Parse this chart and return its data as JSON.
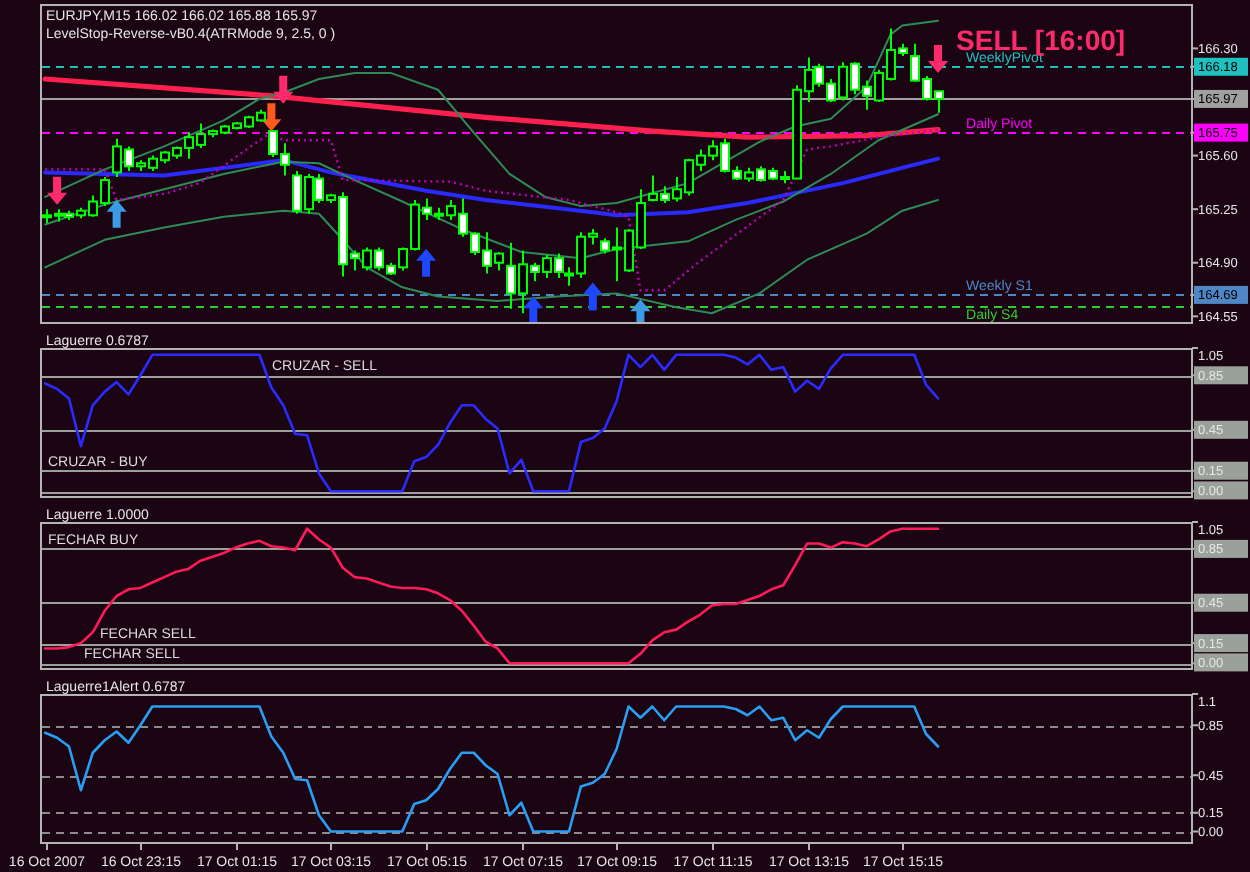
{
  "chart_data": [
    {
      "type": "candlestick",
      "title": "EURJPY,M15 166.02 166.02 165.88 165.97",
      "subtitle": "LevelStop-Reverse-vB0.4(ATRMode 9, 2.5, 0 )",
      "color": "#00ff00",
      "x": [
        "2007-10-16T21:15",
        "2007-10-16T21:30",
        "2007-10-16T21:45",
        "2007-10-16T22:00",
        "2007-10-16T22:15",
        "2007-10-16T22:30",
        "2007-10-16T22:45",
        "2007-10-16T23:00",
        "2007-10-16T23:15",
        "2007-10-16T23:30",
        "2007-10-16T23:45",
        "2007-10-17T00:00",
        "2007-10-17T00:15",
        "2007-10-17T00:30",
        "2007-10-17T00:45",
        "2007-10-17T01:00",
        "2007-10-17T01:15",
        "2007-10-17T01:30",
        "2007-10-17T01:45",
        "2007-10-17T02:00",
        "2007-10-17T02:15",
        "2007-10-17T02:30",
        "2007-10-17T02:45",
        "2007-10-17T03:00",
        "2007-10-17T03:15",
        "2007-10-17T03:30",
        "2007-10-17T03:45",
        "2007-10-17T04:00",
        "2007-10-17T04:15",
        "2007-10-17T04:30",
        "2007-10-17T04:45",
        "2007-10-17T05:00",
        "2007-10-17T05:15",
        "2007-10-17T05:30",
        "2007-10-17T05:45",
        "2007-10-17T06:00",
        "2007-10-17T06:15",
        "2007-10-17T06:30",
        "2007-10-17T06:45",
        "2007-10-17T07:00",
        "2007-10-17T07:15",
        "2007-10-17T07:30",
        "2007-10-17T07:45",
        "2007-10-17T08:00",
        "2007-10-17T08:15",
        "2007-10-17T08:30",
        "2007-10-17T08:45",
        "2007-10-17T09:00",
        "2007-10-17T09:15",
        "2007-10-17T09:30",
        "2007-10-17T09:45",
        "2007-10-17T10:00",
        "2007-10-17T10:15",
        "2007-10-17T10:30",
        "2007-10-17T10:45",
        "2007-10-17T11:00",
        "2007-10-17T11:15",
        "2007-10-17T11:30",
        "2007-10-17T11:45",
        "2007-10-17T12:00",
        "2007-10-17T12:15",
        "2007-10-17T12:30",
        "2007-10-17T12:45",
        "2007-10-17T13:00",
        "2007-10-17T13:15",
        "2007-10-17T13:30",
        "2007-10-17T13:45",
        "2007-10-17T14:00",
        "2007-10-17T14:15",
        "2007-10-17T14:30",
        "2007-10-17T14:45",
        "2007-10-17T15:00",
        "2007-10-17T15:15",
        "2007-10-17T15:30",
        "2007-10-17T15:45",
        "2007-10-17T16:00"
      ],
      "ohlc": [
        [
          165.2,
          165.25,
          165.16,
          165.21
        ],
        [
          165.22,
          165.25,
          165.17,
          165.21
        ],
        [
          165.22,
          165.24,
          165.18,
          165.2
        ],
        [
          165.21,
          165.26,
          165.19,
          165.24
        ],
        [
          165.21,
          165.34,
          165.2,
          165.3
        ],
        [
          165.29,
          165.46,
          165.27,
          165.44
        ],
        [
          165.49,
          165.71,
          165.46,
          165.66
        ],
        [
          165.64,
          165.66,
          165.5,
          165.53
        ],
        [
          165.53,
          165.57,
          165.5,
          165.55
        ],
        [
          165.52,
          165.6,
          165.5,
          165.58
        ],
        [
          165.57,
          165.63,
          165.55,
          165.62
        ],
        [
          165.6,
          165.66,
          165.58,
          165.65
        ],
        [
          165.65,
          165.75,
          165.58,
          165.72
        ],
        [
          165.67,
          165.81,
          165.65,
          165.74
        ],
        [
          165.74,
          165.77,
          165.72,
          165.76
        ],
        [
          165.75,
          165.8,
          165.74,
          165.79
        ],
        [
          165.78,
          165.82,
          165.77,
          165.81
        ],
        [
          165.79,
          165.86,
          165.78,
          165.85
        ],
        [
          165.83,
          165.9,
          165.82,
          165.88
        ],
        [
          165.76,
          165.76,
          165.59,
          165.61
        ],
        [
          165.61,
          165.68,
          165.47,
          165.54
        ],
        [
          165.47,
          165.5,
          165.22,
          165.24
        ],
        [
          165.25,
          165.48,
          165.22,
          165.46
        ],
        [
          165.45,
          165.48,
          165.29,
          165.31
        ],
        [
          165.31,
          165.35,
          165.29,
          165.34
        ],
        [
          165.33,
          165.36,
          164.81,
          164.89
        ],
        [
          164.96,
          164.98,
          164.85,
          164.93
        ],
        [
          164.87,
          165.0,
          164.85,
          164.98
        ],
        [
          164.98,
          165.0,
          164.85,
          164.87
        ],
        [
          164.88,
          164.9,
          164.82,
          164.83
        ],
        [
          164.87,
          165.0,
          164.85,
          164.99
        ],
        [
          164.99,
          165.31,
          164.98,
          165.28
        ],
        [
          165.26,
          165.32,
          165.18,
          165.22
        ],
        [
          165.22,
          165.26,
          165.18,
          165.21
        ],
        [
          165.21,
          165.31,
          165.18,
          165.27
        ],
        [
          165.22,
          165.32,
          165.07,
          165.09
        ],
        [
          165.09,
          165.1,
          164.95,
          164.97
        ],
        [
          164.98,
          165.1,
          164.83,
          164.88
        ],
        [
          164.9,
          164.97,
          164.85,
          164.96
        ],
        [
          164.88,
          165.03,
          164.6,
          164.7
        ],
        [
          164.7,
          164.98,
          164.57,
          164.89
        ],
        [
          164.88,
          164.9,
          164.78,
          164.84
        ],
        [
          164.84,
          164.95,
          164.8,
          164.93
        ],
        [
          164.93,
          164.96,
          164.8,
          164.84
        ],
        [
          164.82,
          164.87,
          164.75,
          164.83
        ],
        [
          164.83,
          165.1,
          164.8,
          165.07
        ],
        [
          165.07,
          165.12,
          165.02,
          165.09
        ],
        [
          165.04,
          165.06,
          164.96,
          164.98
        ],
        [
          164.99,
          165.13,
          164.78,
          165.0
        ],
        [
          164.85,
          165.12,
          164.84,
          165.11
        ],
        [
          165.0,
          165.38,
          164.99,
          165.29
        ],
        [
          165.31,
          165.47,
          165.3,
          165.35
        ],
        [
          165.35,
          165.4,
          165.29,
          165.31
        ],
        [
          165.32,
          165.46,
          165.3,
          165.38
        ],
        [
          165.36,
          165.58,
          165.34,
          165.57
        ],
        [
          165.54,
          165.64,
          165.5,
          165.6
        ],
        [
          165.6,
          165.7,
          165.57,
          165.66
        ],
        [
          165.68,
          165.71,
          165.49,
          165.5
        ],
        [
          165.5,
          165.53,
          165.44,
          165.45
        ],
        [
          165.45,
          165.52,
          165.43,
          165.49
        ],
        [
          165.51,
          165.53,
          165.43,
          165.44
        ],
        [
          165.5,
          165.52,
          165.44,
          165.45
        ],
        [
          165.45,
          165.5,
          165.42,
          165.46
        ],
        [
          165.45,
          166.06,
          165.45,
          166.03
        ],
        [
          166.02,
          166.24,
          165.95,
          166.16
        ],
        [
          166.18,
          166.2,
          166.05,
          166.07
        ],
        [
          166.07,
          166.1,
          165.95,
          165.96
        ],
        [
          165.98,
          166.21,
          165.96,
          166.18
        ],
        [
          166.2,
          166.21,
          166.0,
          166.03
        ],
        [
          166.05,
          166.09,
          165.9,
          165.99
        ],
        [
          165.96,
          166.16,
          165.95,
          166.14
        ],
        [
          166.1,
          166.43,
          166.09,
          166.29
        ],
        [
          166.3,
          166.33,
          166.25,
          166.27
        ],
        [
          166.25,
          166.33,
          166.08,
          166.09
        ],
        [
          166.1,
          166.12,
          165.96,
          165.97
        ],
        [
          166.02,
          166.02,
          165.88,
          165.97
        ]
      ],
      "series": [
        {
          "type": "line",
          "color": "#ff2050",
          "x": [
            "2007-10-16T21:15",
            "2007-10-17T02:00",
            "2007-10-17T06:30",
            "2007-10-17T10:00",
            "2007-10-17T12:00",
            "2007-10-17T14:30",
            "2007-10-17T16:00"
          ],
          "values": [
            166.1,
            165.99,
            165.85,
            165.76,
            165.72,
            165.73,
            165.77
          ]
        },
        {
          "type": "line",
          "color": "#2a2aff",
          "x": [
            "2007-10-16T21:15",
            "2007-10-16T23:45",
            "2007-10-17T02:15",
            "2007-10-17T03:15",
            "2007-10-17T05:15",
            "2007-10-17T06:30",
            "2007-10-17T08:45",
            "2007-10-17T09:15",
            "2007-10-17T10:45",
            "2007-10-17T12:00",
            "2007-10-17T14:00",
            "2007-10-17T16:00"
          ],
          "values": [
            165.49,
            165.47,
            165.57,
            165.49,
            165.37,
            165.31,
            165.23,
            165.21,
            165.23,
            165.29,
            165.42,
            165.58
          ]
        },
        {
          "type": "line",
          "color": "#2e8b57",
          "x": [
            "2007-10-16T21:15",
            "2007-10-16T22:30",
            "2007-10-16T23:45",
            "2007-10-17T01:00",
            "2007-10-17T01:45",
            "2007-10-17T02:15",
            "2007-10-17T03:00",
            "2007-10-17T03:45",
            "2007-10-17T04:30",
            "2007-10-17T05:30",
            "2007-10-17T06:15",
            "2007-10-17T07:00",
            "2007-10-17T07:45",
            "2007-10-17T08:30",
            "2007-10-17T09:15",
            "2007-10-17T10:45",
            "2007-10-17T12:15",
            "2007-10-17T13:00",
            "2007-10-17T13:45",
            "2007-10-17T14:30",
            "2007-10-17T15:00",
            "2007-10-17T15:15",
            "2007-10-17T16:00"
          ],
          "values": [
            165.33,
            165.51,
            165.66,
            165.83,
            165.97,
            166.01,
            166.1,
            166.14,
            166.14,
            166.03,
            165.75,
            165.48,
            165.33,
            165.27,
            165.29,
            165.42,
            165.69,
            165.79,
            165.84,
            166.05,
            166.39,
            166.45,
            166.48
          ]
        },
        {
          "type": "line",
          "color": "#2e8b57",
          "x": [
            "2007-10-16T21:15",
            "2007-10-16T22:30",
            "2007-10-16T23:45",
            "2007-10-17T01:00",
            "2007-10-17T02:15",
            "2007-10-17T03:00",
            "2007-10-17T03:45",
            "2007-10-17T04:45",
            "2007-10-17T06:00",
            "2007-10-17T07:15",
            "2007-10-17T08:30",
            "2007-10-17T09:15",
            "2007-10-17T10:45",
            "2007-10-17T11:45",
            "2007-10-17T12:45",
            "2007-10-17T13:45",
            "2007-10-17T14:45",
            "2007-10-17T16:00"
          ],
          "values": [
            165.15,
            165.28,
            165.38,
            165.48,
            165.56,
            165.55,
            165.44,
            165.3,
            165.12,
            164.97,
            164.93,
            164.99,
            165.04,
            165.18,
            165.3,
            165.48,
            165.7,
            165.87
          ]
        },
        {
          "type": "line",
          "color": "#2e8b57",
          "x": [
            "2007-10-16T21:15",
            "2007-10-16T22:30",
            "2007-10-16T23:45",
            "2007-10-17T01:00",
            "2007-10-17T02:15",
            "2007-10-17T03:00",
            "2007-10-17T03:30",
            "2007-10-17T04:00",
            "2007-10-17T04:45",
            "2007-10-17T05:30",
            "2007-10-17T06:45",
            "2007-10-17T08:00",
            "2007-10-17T09:15",
            "2007-10-17T10:30",
            "2007-10-17T11:15",
            "2007-10-17T12:15",
            "2007-10-17T13:15",
            "2007-10-17T14:30",
            "2007-10-17T15:15",
            "2007-10-17T16:00"
          ],
          "values": [
            164.87,
            165.05,
            165.13,
            165.2,
            165.24,
            165.22,
            165.05,
            164.87,
            164.74,
            164.68,
            164.65,
            164.68,
            164.7,
            164.61,
            164.57,
            164.7,
            164.92,
            165.09,
            165.24,
            165.31
          ]
        },
        {
          "type": "line",
          "color": "#c000c0",
          "line_style": "dotted",
          "x": [
            "2007-10-16T21:15",
            "2007-10-16T22:30",
            "2007-10-16T22:45",
            "2007-10-16T23:45",
            "2007-10-17T00:30",
            "2007-10-17T01:15",
            "2007-10-17T01:45",
            "2007-10-17T02:00",
            "2007-10-17T02:15",
            "2007-10-17T03:15",
            "2007-10-17T03:30",
            "2007-10-17T05:45",
            "2007-10-17T06:30",
            "2007-10-17T08:15",
            "2007-10-17T09:15",
            "2007-10-17T09:30",
            "2007-10-17T09:45",
            "2007-10-17T10:15",
            "2007-10-17T11:00",
            "2007-10-17T12:45",
            "2007-10-17T13:15",
            "2007-10-17T13:45",
            "2007-10-17T14:45",
            "2007-10-17T16:00"
          ],
          "values": [
            165.51,
            165.51,
            165.31,
            165.35,
            165.42,
            165.59,
            165.7,
            165.75,
            165.7,
            165.7,
            165.44,
            165.43,
            165.37,
            165.31,
            165.23,
            165.2,
            164.72,
            164.72,
            164.91,
            165.31,
            165.64,
            165.66,
            165.72,
            165.77
          ]
        },
        {
          "type": "scatter",
          "color": "#ff2a6d",
          "x": [
            "2007-10-16T21:30",
            "2007-10-17T02:15",
            "2007-10-17T16:00"
          ],
          "values": [
            165.37,
            166.03,
            166.23
          ]
        },
        {
          "type": "scatter",
          "color": "#ff5a1e",
          "x": [
            "2007-10-17T02:00"
          ],
          "values": [
            165.85
          ]
        },
        {
          "type": "scatter",
          "color": "#1e46ff",
          "x": [
            "2007-10-17T05:15",
            "2007-10-17T07:30",
            "2007-10-17T08:45"
          ],
          "values": [
            164.9,
            164.59,
            164.68
          ]
        },
        {
          "type": "scatter",
          "color": "#3c9be6",
          "x": [
            "2007-10-16T22:45",
            "2007-10-17T09:45"
          ],
          "values": [
            165.22,
            164.57
          ]
        }
      ],
      "xlim": [
        "2007-10-16T21:11",
        "2007-10-17T21:20"
      ],
      "ylim": [
        164.5,
        166.59
      ],
      "yticks": [
        {
          "value": 166.3,
          "label": "166.30"
        },
        166.18,
        165.97,
        165.75,
        {
          "value": 165.6,
          "label": "165.60"
        },
        165.25,
        {
          "value": 164.9,
          "label": "164.90"
        },
        164.69,
        164.55
      ],
      "tick_labels": "y",
      "ref_lines": [
        {
          "axis": "y",
          "value": 166.18,
          "label": "WeeklyPivot",
          "color": "#20c0c0",
          "line_style": "dashed"
        },
        {
          "axis": "y",
          "value": 165.97,
          "color": "#a0a0a0",
          "line_style": "solid"
        },
        {
          "axis": "y",
          "value": 165.75,
          "label": "Daily Pivot",
          "color": "#ff00ff",
          "line_style": "dashed"
        },
        {
          "axis": "y",
          "value": 164.69,
          "label": "Weekly S1",
          "color": "#4f86c6",
          "line_style": "dashed"
        },
        {
          "axis": "y",
          "value": 164.62,
          "label": "Daily S4",
          "color": "#32cd32",
          "line_style": "dashed"
        }
      ],
      "annotations": [
        "SELL [16:00]"
      ]
    },
    {
      "type": "line",
      "title": "Laguerre 0.6787",
      "x": [
        "2007-10-16T21:15",
        "2007-10-16T21:30",
        "2007-10-16T21:45",
        "2007-10-16T22:00",
        "2007-10-16T22:15",
        "2007-10-16T22:30",
        "2007-10-16T22:45",
        "2007-10-16T23:00",
        "2007-10-16T23:15",
        "2007-10-16T23:30",
        "2007-10-16T23:45",
        "2007-10-17T00:00",
        "2007-10-17T00:15",
        "2007-10-17T00:30",
        "2007-10-17T00:45",
        "2007-10-17T01:00",
        "2007-10-17T01:15",
        "2007-10-17T01:30",
        "2007-10-17T01:45",
        "2007-10-17T02:00",
        "2007-10-17T02:15",
        "2007-10-17T02:30",
        "2007-10-17T02:45",
        "2007-10-17T03:00",
        "2007-10-17T03:15",
        "2007-10-17T03:30",
        "2007-10-17T03:45",
        "2007-10-17T04:00",
        "2007-10-17T04:15",
        "2007-10-17T04:30",
        "2007-10-17T04:45",
        "2007-10-17T05:00",
        "2007-10-17T05:15",
        "2007-10-17T05:30",
        "2007-10-17T05:45",
        "2007-10-17T06:00",
        "2007-10-17T06:15",
        "2007-10-17T06:30",
        "2007-10-17T06:45",
        "2007-10-17T07:00",
        "2007-10-17T07:15",
        "2007-10-17T07:30",
        "2007-10-17T07:45",
        "2007-10-17T08:00",
        "2007-10-17T08:15",
        "2007-10-17T08:30",
        "2007-10-17T08:45",
        "2007-10-17T09:00",
        "2007-10-17T09:15",
        "2007-10-17T09:30",
        "2007-10-17T09:45",
        "2007-10-17T10:00",
        "2007-10-17T10:15",
        "2007-10-17T10:30",
        "2007-10-17T10:45",
        "2007-10-17T11:00",
        "2007-10-17T11:15",
        "2007-10-17T11:30",
        "2007-10-17T11:45",
        "2007-10-17T12:00",
        "2007-10-17T12:15",
        "2007-10-17T12:30",
        "2007-10-17T12:45",
        "2007-10-17T13:00",
        "2007-10-17T13:15",
        "2007-10-17T13:30",
        "2007-10-17T13:45",
        "2007-10-17T14:00",
        "2007-10-17T14:15",
        "2007-10-17T14:30",
        "2007-10-17T14:45",
        "2007-10-17T15:00",
        "2007-10-17T15:15",
        "2007-10-17T15:30",
        "2007-10-17T15:45",
        "2007-10-17T16:00"
      ],
      "series": [
        {
          "color": "#2b2bff",
          "values": [
            0.79,
            0.75,
            0.68,
            0.33,
            0.63,
            0.73,
            0.8,
            0.71,
            0.85,
            1,
            1,
            1,
            1,
            1,
            1,
            1,
            1,
            1,
            1,
            0.76,
            0.63,
            0.42,
            0.41,
            0.13,
            0,
            0,
            0,
            0,
            0,
            0,
            0,
            0.22,
            0.25,
            0.34,
            0.5,
            0.63,
            0.63,
            0.53,
            0.46,
            0.13,
            0.23,
            0,
            0,
            0,
            0,
            0.36,
            0.39,
            0.46,
            0.66,
            1,
            0.91,
            1,
            0.89,
            1,
            1,
            1,
            1,
            1,
            0.98,
            0.93,
            1,
            0.89,
            0.91,
            0.73,
            0.81,
            0.75,
            0.9,
            1,
            1,
            1,
            1,
            1,
            1,
            1,
            0.78,
            0.68
          ]
        }
      ],
      "xlim": [
        "2007-10-16T21:11",
        "2007-10-17T21:20"
      ],
      "ylim": [
        -0.05,
        1.05
      ],
      "yticks": [
        1.05,
        0.85,
        0.45,
        0.15,
        {
          "value": 0,
          "label": "0.00"
        }
      ],
      "tick_labels": "y",
      "ref_lines": [
        {
          "axis": "y",
          "value": 0.85,
          "label": "CRUZAR - SELL",
          "color": "#9aa09a"
        },
        {
          "axis": "y",
          "value": 0.45,
          "color": "#9aa09a"
        },
        {
          "axis": "y",
          "value": 0.15,
          "label": "CRUZAR - BUY",
          "color": "#9aa09a"
        },
        {
          "axis": "y",
          "value": 0,
          "color": "#9aa09a"
        }
      ]
    },
    {
      "type": "line",
      "title": "Laguerre 1.0000",
      "x": [
        "2007-10-16T21:15",
        "2007-10-16T21:30",
        "2007-10-16T21:45",
        "2007-10-16T22:00",
        "2007-10-16T22:15",
        "2007-10-16T22:30",
        "2007-10-16T22:45",
        "2007-10-16T23:00",
        "2007-10-16T23:15",
        "2007-10-16T23:30",
        "2007-10-16T23:45",
        "2007-10-17T00:00",
        "2007-10-17T00:15",
        "2007-10-17T00:30",
        "2007-10-17T00:45",
        "2007-10-17T01:00",
        "2007-10-17T01:15",
        "2007-10-17T01:30",
        "2007-10-17T01:45",
        "2007-10-17T02:00",
        "2007-10-17T02:15",
        "2007-10-17T02:30",
        "2007-10-17T02:45",
        "2007-10-17T03:00",
        "2007-10-17T03:15",
        "2007-10-17T03:30",
        "2007-10-17T03:45",
        "2007-10-17T04:00",
        "2007-10-17T04:15",
        "2007-10-17T04:30",
        "2007-10-17T04:45",
        "2007-10-17T05:00",
        "2007-10-17T05:15",
        "2007-10-17T05:30",
        "2007-10-17T05:45",
        "2007-10-17T06:00",
        "2007-10-17T06:15",
        "2007-10-17T06:30",
        "2007-10-17T06:45",
        "2007-10-17T07:00",
        "2007-10-17T07:15",
        "2007-10-17T07:30",
        "2007-10-17T07:45",
        "2007-10-17T08:00",
        "2007-10-17T08:15",
        "2007-10-17T08:30",
        "2007-10-17T08:45",
        "2007-10-17T09:00",
        "2007-10-17T09:15",
        "2007-10-17T09:30",
        "2007-10-17T09:45",
        "2007-10-17T10:00",
        "2007-10-17T10:15",
        "2007-10-17T10:30",
        "2007-10-17T10:45",
        "2007-10-17T11:00",
        "2007-10-17T11:15",
        "2007-10-17T11:30",
        "2007-10-17T11:45",
        "2007-10-17T12:00",
        "2007-10-17T12:15",
        "2007-10-17T12:30",
        "2007-10-17T12:45",
        "2007-10-17T13:00",
        "2007-10-17T13:15",
        "2007-10-17T13:30",
        "2007-10-17T13:45",
        "2007-10-17T14:00",
        "2007-10-17T14:15",
        "2007-10-17T14:30",
        "2007-10-17T14:45",
        "2007-10-17T15:00",
        "2007-10-17T15:15",
        "2007-10-17T15:30",
        "2007-10-17T15:45",
        "2007-10-17T16:00"
      ],
      "series": [
        {
          "color": "#ff1a5a",
          "values": [
            0.11,
            0.11,
            0.12,
            0.15,
            0.23,
            0.39,
            0.5,
            0.55,
            0.56,
            0.6,
            0.64,
            0.68,
            0.7,
            0.76,
            0.79,
            0.82,
            0.86,
            0.89,
            0.91,
            0.87,
            0.86,
            0.84,
            1,
            0.92,
            0.86,
            0.71,
            0.64,
            0.63,
            0.6,
            0.57,
            0.56,
            0.56,
            0.55,
            0.52,
            0.47,
            0.39,
            0.28,
            0.16,
            0.11,
            0,
            0,
            0,
            0,
            0,
            0,
            0,
            0,
            0,
            0,
            0,
            0.07,
            0.17,
            0.23,
            0.25,
            0.31,
            0.36,
            0.43,
            0.44,
            0.44,
            0.47,
            0.5,
            0.55,
            0.58,
            0.73,
            0.89,
            0.89,
            0.86,
            0.9,
            0.89,
            0.87,
            0.92,
            0.98,
            1,
            1,
            1,
            1
          ]
        }
      ],
      "xlim": [
        "2007-10-16T21:11",
        "2007-10-17T21:20"
      ],
      "ylim": [
        -0.05,
        1.05
      ],
      "yticks": [
        1.05,
        0.85,
        0.45,
        0.15,
        {
          "value": 0,
          "label": "0.00"
        }
      ],
      "tick_labels": "y",
      "ref_lines": [
        {
          "axis": "y",
          "value": 0.85,
          "label": "FECHAR BUY",
          "color": "#9aa09a"
        },
        {
          "axis": "y",
          "value": 0.45,
          "color": "#9aa09a"
        },
        {
          "axis": "y",
          "value": 0.15,
          "label": "FECHAR SELL",
          "color": "#9aa09a"
        },
        {
          "axis": "y",
          "value": 0,
          "label": "FECHAR SELL",
          "color": "#9aa09a"
        }
      ]
    },
    {
      "type": "line",
      "title": "Laguerre1Alert 0.6787",
      "x": [
        "2007-10-16T21:15",
        "2007-10-16T21:30",
        "2007-10-16T21:45",
        "2007-10-16T22:00",
        "2007-10-16T22:15",
        "2007-10-16T22:30",
        "2007-10-16T22:45",
        "2007-10-16T23:00",
        "2007-10-16T23:15",
        "2007-10-16T23:30",
        "2007-10-16T23:45",
        "2007-10-17T00:00",
        "2007-10-17T00:15",
        "2007-10-17T00:30",
        "2007-10-17T00:45",
        "2007-10-17T01:00",
        "2007-10-17T01:15",
        "2007-10-17T01:30",
        "2007-10-17T01:45",
        "2007-10-17T02:00",
        "2007-10-17T02:15",
        "2007-10-17T02:30",
        "2007-10-17T02:45",
        "2007-10-17T03:00",
        "2007-10-17T03:15",
        "2007-10-17T03:30",
        "2007-10-17T03:45",
        "2007-10-17T04:00",
        "2007-10-17T04:15",
        "2007-10-17T04:30",
        "2007-10-17T04:45",
        "2007-10-17T05:00",
        "2007-10-17T05:15",
        "2007-10-17T05:30",
        "2007-10-17T05:45",
        "2007-10-17T06:00",
        "2007-10-17T06:15",
        "2007-10-17T06:30",
        "2007-10-17T06:45",
        "2007-10-17T07:00",
        "2007-10-17T07:15",
        "2007-10-17T07:30",
        "2007-10-17T07:45",
        "2007-10-17T08:00",
        "2007-10-17T08:15",
        "2007-10-17T08:30",
        "2007-10-17T08:45",
        "2007-10-17T09:00",
        "2007-10-17T09:15",
        "2007-10-17T09:30",
        "2007-10-17T09:45",
        "2007-10-17T10:00",
        "2007-10-17T10:15",
        "2007-10-17T10:30",
        "2007-10-17T10:45",
        "2007-10-17T11:00",
        "2007-10-17T11:15",
        "2007-10-17T11:30",
        "2007-10-17T11:45",
        "2007-10-17T12:00",
        "2007-10-17T12:15",
        "2007-10-17T12:30",
        "2007-10-17T12:45",
        "2007-10-17T13:00",
        "2007-10-17T13:15",
        "2007-10-17T13:30",
        "2007-10-17T13:45",
        "2007-10-17T14:00",
        "2007-10-17T14:15",
        "2007-10-17T14:30",
        "2007-10-17T14:45",
        "2007-10-17T15:00",
        "2007-10-17T15:15",
        "2007-10-17T15:30",
        "2007-10-17T15:45",
        "2007-10-17T16:00"
      ],
      "series": [
        {
          "color": "#2a9df4",
          "values": [
            0.79,
            0.75,
            0.68,
            0.33,
            0.63,
            0.73,
            0.8,
            0.71,
            0.85,
            1,
            1,
            1,
            1,
            1,
            1,
            1,
            1,
            1,
            1,
            0.76,
            0.63,
            0.42,
            0.41,
            0.13,
            0,
            0,
            0,
            0,
            0,
            0,
            0,
            0.22,
            0.25,
            0.34,
            0.5,
            0.63,
            0.63,
            0.53,
            0.46,
            0.13,
            0.23,
            0,
            0,
            0,
            0,
            0.36,
            0.39,
            0.46,
            0.66,
            1,
            0.91,
            1,
            0.89,
            1,
            1,
            1,
            1,
            1,
            0.98,
            0.93,
            1,
            0.89,
            0.91,
            0.73,
            0.81,
            0.75,
            0.9,
            1,
            1,
            1,
            1,
            1,
            1,
            1,
            0.78,
            0.68
          ]
        }
      ],
      "xlim": [
        "2007-10-16T21:11",
        "2007-10-17T21:20"
      ],
      "ylim": [
        -0.1,
        1.1
      ],
      "xticks": [
        {
          "value": "2007-10-16T21:15",
          "label": "16 Oct 2007"
        },
        {
          "value": "2007-10-16T23:15",
          "label": "16 Oct 23:15"
        },
        {
          "value": "2007-10-17T01:15",
          "label": "17 Oct 01:15"
        },
        {
          "value": "2007-10-17T03:15",
          "label": "17 Oct 03:15"
        },
        {
          "value": "2007-10-17T05:15",
          "label": "17 Oct 05:15"
        },
        {
          "value": "2007-10-17T07:15",
          "label": "17 Oct 07:15"
        },
        {
          "value": "2007-10-17T09:15",
          "label": "17 Oct 09:15"
        },
        {
          "value": "2007-10-17T11:15",
          "label": "17 Oct 11:15"
        },
        {
          "value": "2007-10-17T13:15",
          "label": "17 Oct 13:15"
        },
        {
          "value": "2007-10-17T15:15",
          "label": "17 Oct 15:15"
        }
      ],
      "yticks": [
        1.1,
        0.85,
        0.45,
        0.15,
        {
          "value": 0,
          "label": "0.00"
        }
      ],
      "ref_lines": [
        {
          "axis": "y",
          "value": 0.85,
          "color": "#8c8c8c",
          "line_style": "dashed"
        },
        {
          "axis": "y",
          "value": 0.45,
          "color": "#8c8c8c",
          "line_style": "dashed"
        },
        {
          "axis": "y",
          "value": 0.15,
          "color": "#8c8c8c",
          "line_style": "dashed"
        },
        {
          "axis": "y",
          "value": 0,
          "color": "#8c8c8c",
          "line_style": "dashed"
        }
      ]
    }
  ]
}
